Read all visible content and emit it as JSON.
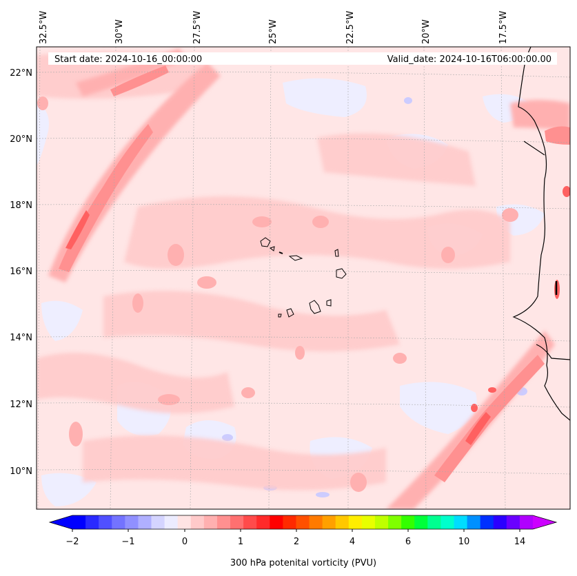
{
  "header": {
    "start_date": "Start date: 2024-10-16_00:00:00",
    "valid_date": "Valid_date: 2024-10-16T06:00:00.00"
  },
  "longitude_labels": [
    "32.5°W",
    "30°W",
    "27.5°W",
    "25°W",
    "22.5°W",
    "20°W",
    "17.5°W"
  ],
  "latitude_labels": [
    "22°N",
    "20°N",
    "18°N",
    "16°N",
    "14°N",
    "12°N",
    "10°N"
  ],
  "colorbar": {
    "title": "300 hPa potenital vorticity (PVU)",
    "tick_labels": [
      "−2",
      "−1",
      "0",
      "1",
      "2",
      "4",
      "6",
      "10",
      "14"
    ],
    "colors": [
      "#0000ff",
      "#2a2aff",
      "#5050ff",
      "#7373ff",
      "#9090ff",
      "#b0b0ff",
      "#d4d4ff",
      "#ececff",
      "#ffe4e4",
      "#ffcaca",
      "#ffb0b0",
      "#ff9090",
      "#ff7070",
      "#ff4b4b",
      "#ff2a2a",
      "#ff0000",
      "#ff2a00",
      "#ff5000",
      "#ff7a00",
      "#ffa000",
      "#ffc800",
      "#ffee00",
      "#e8ff00",
      "#bfff00",
      "#7fff00",
      "#33ff00",
      "#00ff3a",
      "#00ff90",
      "#00ffcc",
      "#00ddff",
      "#0090ff",
      "#0030ff",
      "#2b00ff",
      "#6a00ff",
      "#b000ff"
    ],
    "under_color": "#0000ff",
    "over_color": "#cc00ff"
  },
  "map": {
    "background_color": "#ffe6e6",
    "coastline_color": "#000000"
  }
}
